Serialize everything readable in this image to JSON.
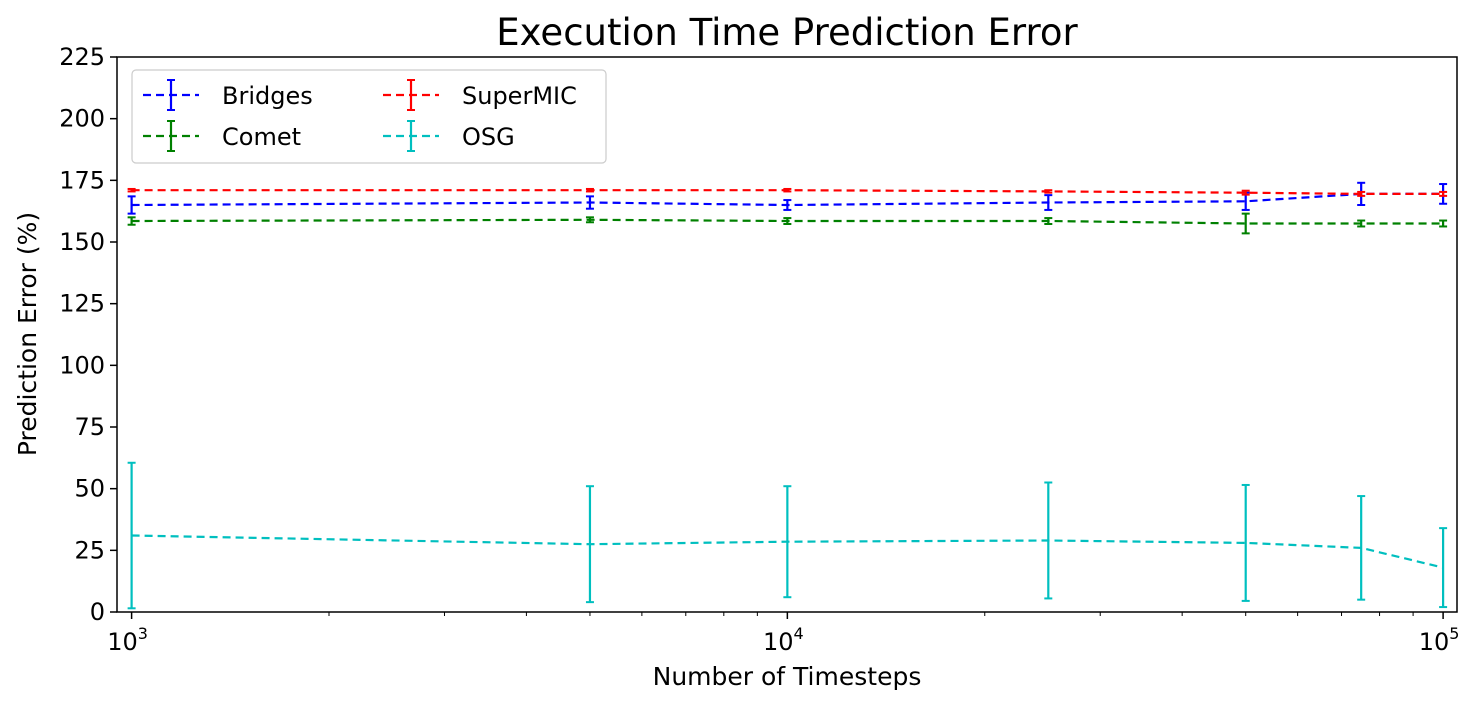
{
  "chart_data": {
    "type": "line",
    "title": "Execution Time Prediction Error",
    "xlabel": "Number of Timesteps",
    "ylabel": "Prediction Error (%)",
    "xscale": "log",
    "xlim": [
      950,
      105000
    ],
    "ylim": [
      0,
      225
    ],
    "yticks": [
      0,
      25,
      50,
      75,
      100,
      125,
      150,
      175,
      200,
      225
    ],
    "xticks": [
      {
        "value": 1000,
        "base": "10",
        "exp": "3"
      },
      {
        "value": 10000,
        "base": "10",
        "exp": "4"
      },
      {
        "value": 100000,
        "base": "10",
        "exp": "5"
      }
    ],
    "x": [
      1000,
      5000,
      10000,
      25000,
      50000,
      75000,
      100000
    ],
    "legend_position": "top-left",
    "legend_columns": 2,
    "grid": false,
    "error_bars": true,
    "series": [
      {
        "name": "Bridges",
        "color": "#0000ff",
        "values": [
          165,
          166,
          165,
          166,
          166.5,
          169.5,
          169.5
        ],
        "errors": [
          3.5,
          2.5,
          2,
          3,
          3.5,
          4.5,
          4
        ]
      },
      {
        "name": "Comet",
        "color": "#008000",
        "values": [
          158.5,
          159,
          158.5,
          158.5,
          157.5,
          157.5,
          157.5
        ],
        "errors": [
          1.5,
          1,
          1.2,
          1.2,
          4,
          1.2,
          1.2
        ]
      },
      {
        "name": "SuperMIC",
        "color": "#ff0000",
        "values": [
          171,
          171,
          171,
          170.5,
          170,
          169.5,
          169.5
        ],
        "errors": [
          0.5,
          0.5,
          0.5,
          0.5,
          0.8,
          0.8,
          0.8
        ]
      },
      {
        "name": "OSG",
        "color": "#00bfbf",
        "values": [
          31,
          27.5,
          28.5,
          29,
          28,
          26,
          18
        ],
        "errors": [
          29.5,
          23.5,
          22.5,
          23.5,
          23.5,
          21,
          16
        ]
      }
    ]
  }
}
